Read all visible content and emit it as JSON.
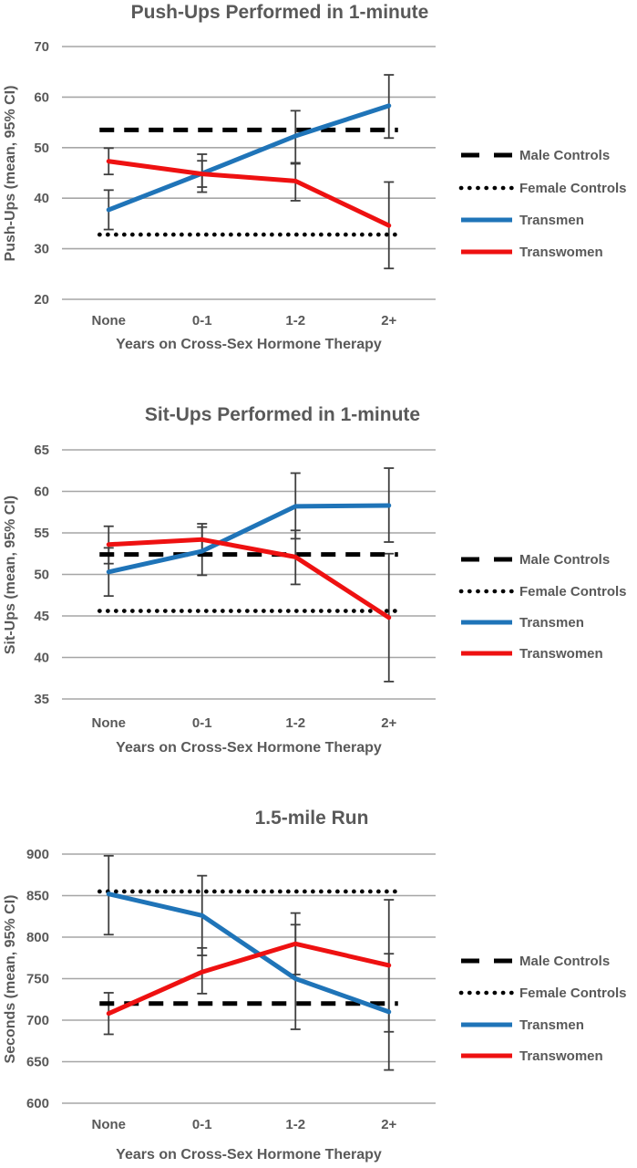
{
  "figure": {
    "background": "#FFFFFF",
    "text_color": "#595959",
    "gridline_color": "#A6A6A6",
    "error_bar_color": "#3F3F3F",
    "transmen_color": "#1F74B8",
    "transwomen_color": "#EE1111",
    "controls_color": "#000000"
  },
  "chart_data": [
    {
      "type": "line",
      "title": "Push-Ups Performed in 1-minute",
      "xlabel": "Years on Cross-Sex Hormone Therapy",
      "ylabel": "Push-Ups (mean, 95% CI)",
      "categories": [
        "None",
        "0-1",
        "1-2",
        "2+"
      ],
      "ylim": [
        20,
        70
      ],
      "yticks": [
        20,
        30,
        40,
        50,
        60,
        70
      ],
      "grid": true,
      "legend_position": "right",
      "reference_lines": [
        {
          "name": "Male Controls",
          "value": 53.5,
          "line_style": "dashed",
          "color": "#000000"
        },
        {
          "name": "Female Controls",
          "value": 32.8,
          "line_style": "dotted",
          "color": "#000000"
        }
      ],
      "series": [
        {
          "name": "Transmen",
          "color": "#1F74B8",
          "values": [
            37.7,
            44.9,
            52.3,
            58.3
          ],
          "ci_low": [
            33.8,
            41.2,
            46.8,
            51.9
          ],
          "ci_high": [
            41.6,
            48.7,
            57.3,
            64.4
          ]
        },
        {
          "name": "Transwomen",
          "color": "#EE1111",
          "values": [
            47.3,
            44.8,
            43.4,
            34.6
          ],
          "ci_low": [
            44.7,
            42.2,
            39.5,
            26.1
          ],
          "ci_high": [
            49.9,
            47.4,
            47.0,
            43.2
          ]
        }
      ],
      "legend": [
        "Male Controls",
        "Female Controls",
        "Transmen",
        "Transwomen"
      ]
    },
    {
      "type": "line",
      "title": "Sit-Ups Performed in 1-minute",
      "xlabel": "Years on Cross-Sex Hormone Therapy",
      "ylabel": "Sit-Ups (mean, 95% CI)",
      "categories": [
        "None",
        "0-1",
        "1-2",
        "2+"
      ],
      "ylim": [
        35,
        65
      ],
      "yticks": [
        35,
        40,
        45,
        50,
        55,
        60,
        65
      ],
      "grid": true,
      "legend_position": "right",
      "reference_lines": [
        {
          "name": "Male Controls",
          "value": 52.4,
          "line_style": "dashed",
          "color": "#000000"
        },
        {
          "name": "Female Controls",
          "value": 45.6,
          "line_style": "dotted",
          "color": "#000000"
        }
      ],
      "series": [
        {
          "name": "Transmen",
          "color": "#1F74B8",
          "values": [
            50.3,
            52.8,
            58.2,
            58.3
          ],
          "ci_low": [
            47.4,
            49.9,
            54.3,
            53.9
          ],
          "ci_high": [
            53.2,
            55.7,
            62.2,
            62.8
          ]
        },
        {
          "name": "Transwomen",
          "color": "#EE1111",
          "values": [
            53.6,
            54.2,
            52.1,
            44.8
          ],
          "ci_low": [
            51.3,
            52.3,
            48.8,
            37.1
          ],
          "ci_high": [
            55.8,
            56.1,
            55.3,
            52.5
          ]
        }
      ],
      "legend": [
        "Male Controls",
        "Female Controls",
        "Transmen",
        "Transwomen"
      ]
    },
    {
      "type": "line",
      "title": "1.5-mile Run",
      "xlabel": "Years on Cross-Sex Hormone Therapy",
      "ylabel": "Seconds (mean, 95% CI)",
      "categories": [
        "None",
        "0-1",
        "1-2",
        "2+"
      ],
      "ylim": [
        600,
        900
      ],
      "yticks": [
        600,
        650,
        700,
        750,
        800,
        850,
        900
      ],
      "grid": true,
      "legend_position": "right",
      "reference_lines": [
        {
          "name": "Male Controls",
          "value": 720,
          "line_style": "dashed",
          "color": "#000000"
        },
        {
          "name": "Female Controls",
          "value": 855,
          "line_style": "dotted",
          "color": "#000000"
        }
      ],
      "series": [
        {
          "name": "Transmen",
          "color": "#1F74B8",
          "values": [
            852,
            826,
            750,
            710
          ],
          "ci_low": [
            803,
            778,
            689,
            640
          ],
          "ci_high": [
            898,
            874,
            815,
            780
          ]
        },
        {
          "name": "Transwomen",
          "color": "#EE1111",
          "values": [
            708,
            758,
            792,
            766
          ],
          "ci_low": [
            683,
            732,
            755,
            686
          ],
          "ci_high": [
            733,
            787,
            829,
            845
          ]
        }
      ],
      "legend": [
        "Male Controls",
        "Female Controls",
        "Transmen",
        "Transwomen"
      ]
    }
  ]
}
